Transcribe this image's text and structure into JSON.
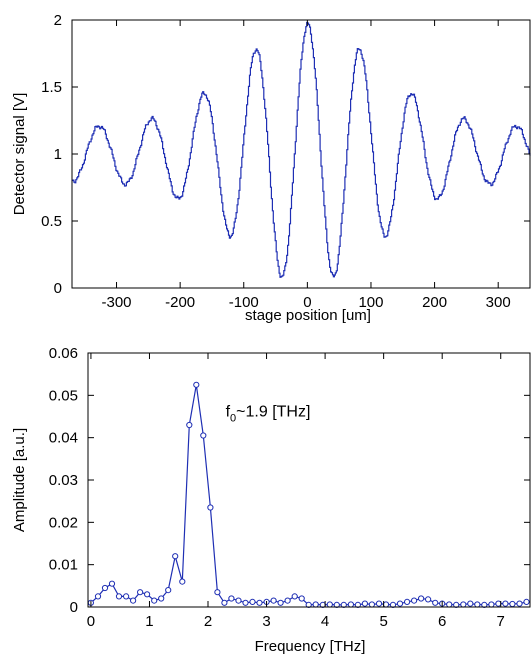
{
  "chart_data": [
    {
      "type": "line",
      "xlabel": "stage position [um]",
      "ylabel": "Detector signal [V]",
      "xlim": [
        -370,
        350
      ],
      "ylim": [
        0,
        2
      ],
      "x_ticks": [
        -300,
        -200,
        -100,
        0,
        100,
        200,
        300
      ],
      "x_tick_labels": [
        "-300",
        "-200",
        "-100",
        "0",
        "100",
        "200",
        "300"
      ],
      "y_ticks": [
        0,
        0.5,
        1,
        1.5,
        2
      ],
      "y_tick_labels": [
        "0",
        "0.5",
        "1",
        "1.5",
        "2"
      ],
      "grid": false,
      "line_color": "#1f2fb4",
      "waveform": {
        "offset": 1.0,
        "period_um": 82,
        "center_um": 0,
        "envelope_amplitude": 0.97,
        "envelope_floor": 0.2,
        "envelope_width_um": 155
      }
    },
    {
      "type": "line",
      "xlabel": "Frequency [THz]",
      "ylabel": "Amplitude [a.u.]",
      "xlim": [
        -0.05,
        7.5
      ],
      "ylim": [
        0,
        0.06
      ],
      "x_ticks": [
        0,
        1,
        2,
        3,
        4,
        5,
        6,
        7
      ],
      "x_tick_labels": [
        "0",
        "1",
        "2",
        "3",
        "4",
        "5",
        "6",
        "7"
      ],
      "y_ticks": [
        0,
        0.01,
        0.02,
        0.03,
        0.04,
        0.05,
        0.06
      ],
      "y_tick_labels": [
        "0",
        "0.01",
        "0.02",
        "0.03",
        "0.04",
        "0.05",
        "0.06"
      ],
      "grid": false,
      "line_color": "#1f2fb4",
      "annotation": {
        "main": "f",
        "sub": "0",
        "rest": "~1.9 [THz]",
        "x": 2.3,
        "y": 0.045
      },
      "x": [
        0,
        0.12,
        0.24,
        0.36,
        0.48,
        0.6,
        0.72,
        0.84,
        0.96,
        1.08,
        1.2,
        1.32,
        1.44,
        1.56,
        1.68,
        1.8,
        1.92,
        2.04,
        2.16,
        2.28,
        2.4,
        2.52,
        2.64,
        2.76,
        2.88,
        3.0,
        3.12,
        3.24,
        3.36,
        3.48,
        3.6,
        3.72,
        3.84,
        3.96,
        4.08,
        4.2,
        4.32,
        4.44,
        4.56,
        4.68,
        4.8,
        4.92,
        5.04,
        5.16,
        5.28,
        5.4,
        5.52,
        5.64,
        5.76,
        5.88,
        6.0,
        6.12,
        6.24,
        6.36,
        6.48,
        6.6,
        6.72,
        6.84,
        6.96,
        7.08,
        7.2,
        7.32,
        7.44
      ],
      "values": [
        0.001,
        0.0025,
        0.0045,
        0.0055,
        0.0025,
        0.0025,
        0.0015,
        0.0035,
        0.003,
        0.0015,
        0.002,
        0.004,
        0.012,
        0.006,
        0.043,
        0.0525,
        0.0405,
        0.0235,
        0.0035,
        0.001,
        0.002,
        0.0015,
        0.001,
        0.0012,
        0.001,
        0.0012,
        0.0015,
        0.001,
        0.0015,
        0.0025,
        0.002,
        0.0005,
        0.0006,
        0.0005,
        0.0006,
        0.0005,
        0.0005,
        0.0006,
        0.0005,
        0.0008,
        0.0006,
        0.0008,
        0.0006,
        0.0005,
        0.0008,
        0.0012,
        0.0015,
        0.002,
        0.0018,
        0.001,
        0.0008,
        0.0006,
        0.0005,
        0.0006,
        0.0008,
        0.0006,
        0.0005,
        0.0006,
        0.0008,
        0.0008,
        0.0007,
        0.0008,
        0.0012
      ]
    }
  ]
}
